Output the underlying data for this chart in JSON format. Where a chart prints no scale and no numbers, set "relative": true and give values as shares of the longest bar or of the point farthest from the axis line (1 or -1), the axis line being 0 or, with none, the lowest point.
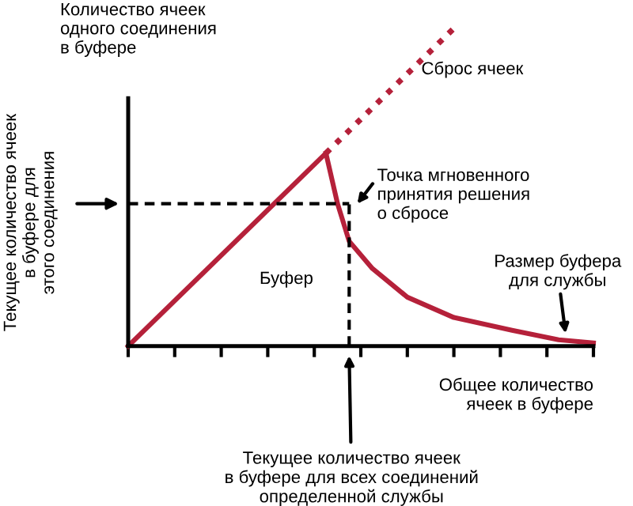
{
  "chart_data": {
    "type": "line",
    "relative": true,
    "title": "Количество ячеек\nодного соединения\nв буфере",
    "ylabel": "Текущее количество ячеек\nв буфере для\nэтого соединения",
    "xlabel": "Общее количество\nячеек в буфере",
    "categories": [
      null,
      null,
      null,
      null,
      null,
      null,
      null,
      null,
      null,
      null,
      null,
      null,
      null,
      null,
      null,
      null,
      null,
      null,
      null,
      null,
      null,
      null,
      null,
      null,
      null,
      null,
      null,
      null,
      null,
      null,
      null,
      null,
      null,
      null,
      null,
      null,
      null,
      null,
      null,
      null,
      null
    ],
    "grid": false,
    "legend": false,
    "marker": "none",
    "series": [
      {
        "color": "#b5213a",
        "line_style": "solid",
        "values": [
          0,
          null,
          null,
          null,
          null,
          null,
          null,
          null,
          null,
          null,
          null,
          null,
          null,
          null,
          null,
          null,
          null,
          0.607,
          null,
          null,
          null,
          null,
          null,
          null,
          null,
          null,
          null,
          null,
          null,
          null,
          null,
          null,
          null,
          null,
          null,
          null,
          null,
          null,
          null,
          null,
          null
        ]
      },
      {
        "color": "#b5213a",
        "line_style": "dotted",
        "values": [
          null,
          null,
          null,
          null,
          null,
          null,
          null,
          null,
          null,
          null,
          null,
          null,
          null,
          null,
          null,
          null,
          null,
          0.607,
          null,
          null,
          null,
          null,
          null,
          null,
          null,
          null,
          null,
          null,
          1.0,
          null,
          null,
          null,
          null,
          null,
          null,
          null,
          null,
          null,
          null,
          null,
          null
        ]
      },
      {
        "color": "#b5213a",
        "line_style": "solid",
        "values": [
          null,
          null,
          null,
          null,
          null,
          null,
          null,
          null,
          null,
          null,
          null,
          null,
          null,
          null,
          null,
          null,
          null,
          0.607,
          0.448,
          0.33,
          null,
          0.244,
          null,
          null,
          0.154,
          null,
          null,
          null,
          0.09,
          null,
          null,
          null,
          null,
          0.05,
          null,
          null,
          null,
          0.02,
          null,
          null,
          0.01
        ]
      },
      {
        "color": "#000000",
        "line_style": "dashed",
        "values": [
          0.448,
          null,
          null,
          null,
          null,
          null,
          null,
          null,
          null,
          null,
          null,
          null,
          null,
          null,
          null,
          null,
          null,
          null,
          null,
          0.448,
          null,
          null,
          null,
          null,
          null,
          null,
          null,
          null,
          null,
          null,
          null,
          null,
          null,
          null,
          null,
          null,
          null,
          null,
          null,
          null,
          null
        ]
      }
    ],
    "annotations": [
      "Сброс ячеек",
      "Буфер",
      "Точка мгновенного\nпринятия решения\nо сбросе",
      "Размер буфера\nдля службы",
      "Текущее количество ячеек\nв буфере для всех соединений\nопределенной службы"
    ]
  }
}
